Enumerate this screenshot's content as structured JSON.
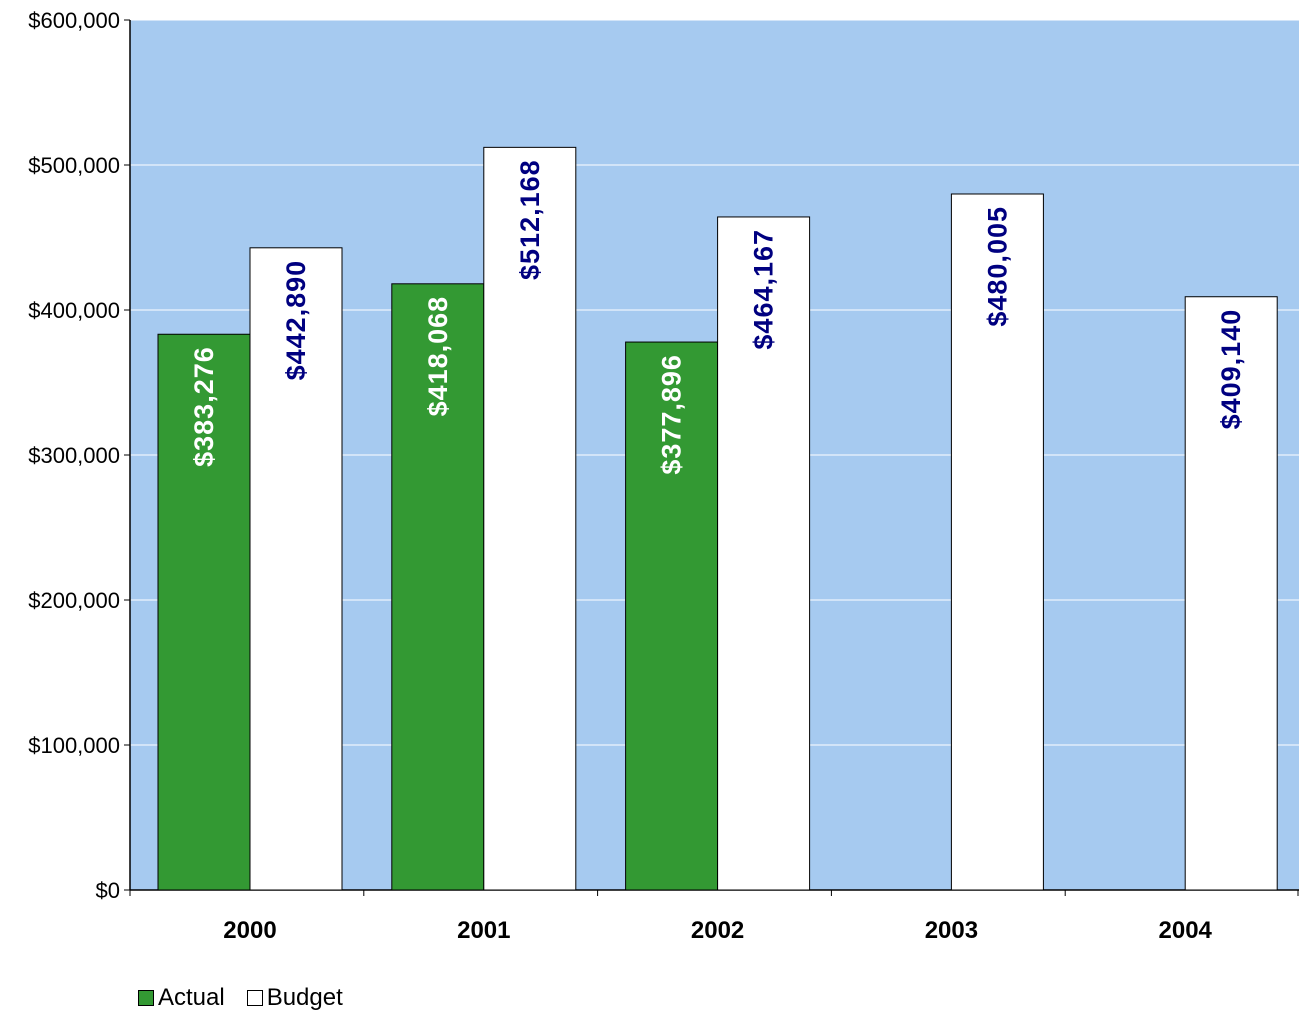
{
  "chart_data": {
    "type": "bar",
    "categories": [
      "2000",
      "2001",
      "2002",
      "2003",
      "2004"
    ],
    "series": [
      {
        "name": "Actual",
        "values": [
          383276,
          418068,
          377896,
          null,
          null
        ],
        "labels": [
          "$383,276",
          "$418,068",
          "$377,896",
          "",
          ""
        ],
        "color": "#339933",
        "label_color": "#ffffff"
      },
      {
        "name": "Budget",
        "values": [
          442890,
          512168,
          464167,
          480005,
          409140
        ],
        "labels": [
          "$442,890",
          "$512,168",
          "$464,167",
          "$480,005",
          "$409,140"
        ],
        "color": "#ffffff",
        "label_color": "#000080"
      }
    ],
    "ylim": [
      0,
      600000
    ],
    "yticks": [
      0,
      100000,
      200000,
      300000,
      400000,
      500000,
      600000
    ],
    "ytick_labels": [
      "$0",
      "$100,000",
      "$200,000",
      "$300,000",
      "$400,000",
      "$500,000",
      "$600,000"
    ],
    "grid": true,
    "legend_position": "bottom-left",
    "plot_background": "#a6caf0",
    "title": "",
    "xlabel": "",
    "ylabel": ""
  },
  "legend": {
    "actual_label": "Actual",
    "budget_label": "Budget"
  }
}
